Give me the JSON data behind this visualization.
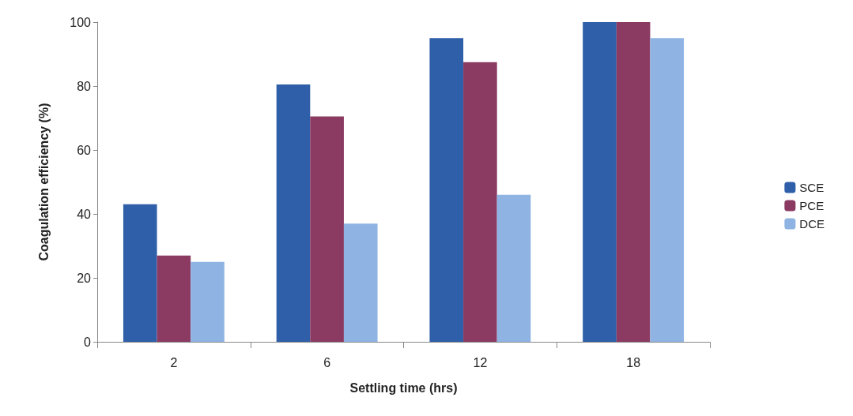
{
  "chart_data": {
    "type": "bar",
    "xlabel": "Settling time (hrs)",
    "ylabel": "Coagulation efficiency (%)",
    "categories": [
      "2",
      "6",
      "12",
      "18"
    ],
    "series": [
      {
        "name": "SCE",
        "color": "#2e5fa8",
        "values": [
          43,
          80.5,
          95,
          100
        ]
      },
      {
        "name": "PCE",
        "color": "#8b3a62",
        "values": [
          27,
          70.5,
          87.5,
          100
        ]
      },
      {
        "name": "DCE",
        "color": "#8fb4e3",
        "values": [
          25,
          37,
          46,
          95
        ]
      }
    ],
    "ylim": [
      0,
      100
    ],
    "yticks": [
      0,
      20,
      40,
      60,
      80,
      100
    ],
    "grid": false,
    "legend": "right"
  }
}
